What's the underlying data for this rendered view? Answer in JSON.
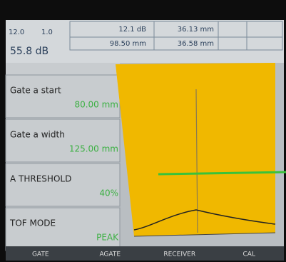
{
  "header": {
    "gain_left": "12.0",
    "gain_step": "1.0",
    "gain": "55.8 dB",
    "fields": [
      "12.1 dB",
      "36.13 mm",
      "98.50 mm",
      "36.58 mm"
    ]
  },
  "menu": [
    {
      "label": "Gate a start",
      "value": "80.00 mm"
    },
    {
      "label": "Gate a width",
      "value": "125.00 mm"
    },
    {
      "label": "A THRESHOLD",
      "value": "40%"
    },
    {
      "label": "TOF MODE",
      "value": "PEAK"
    }
  ],
  "tabs": [
    "GATE",
    "AGATE",
    "RECEIVER",
    "CAL"
  ]
}
